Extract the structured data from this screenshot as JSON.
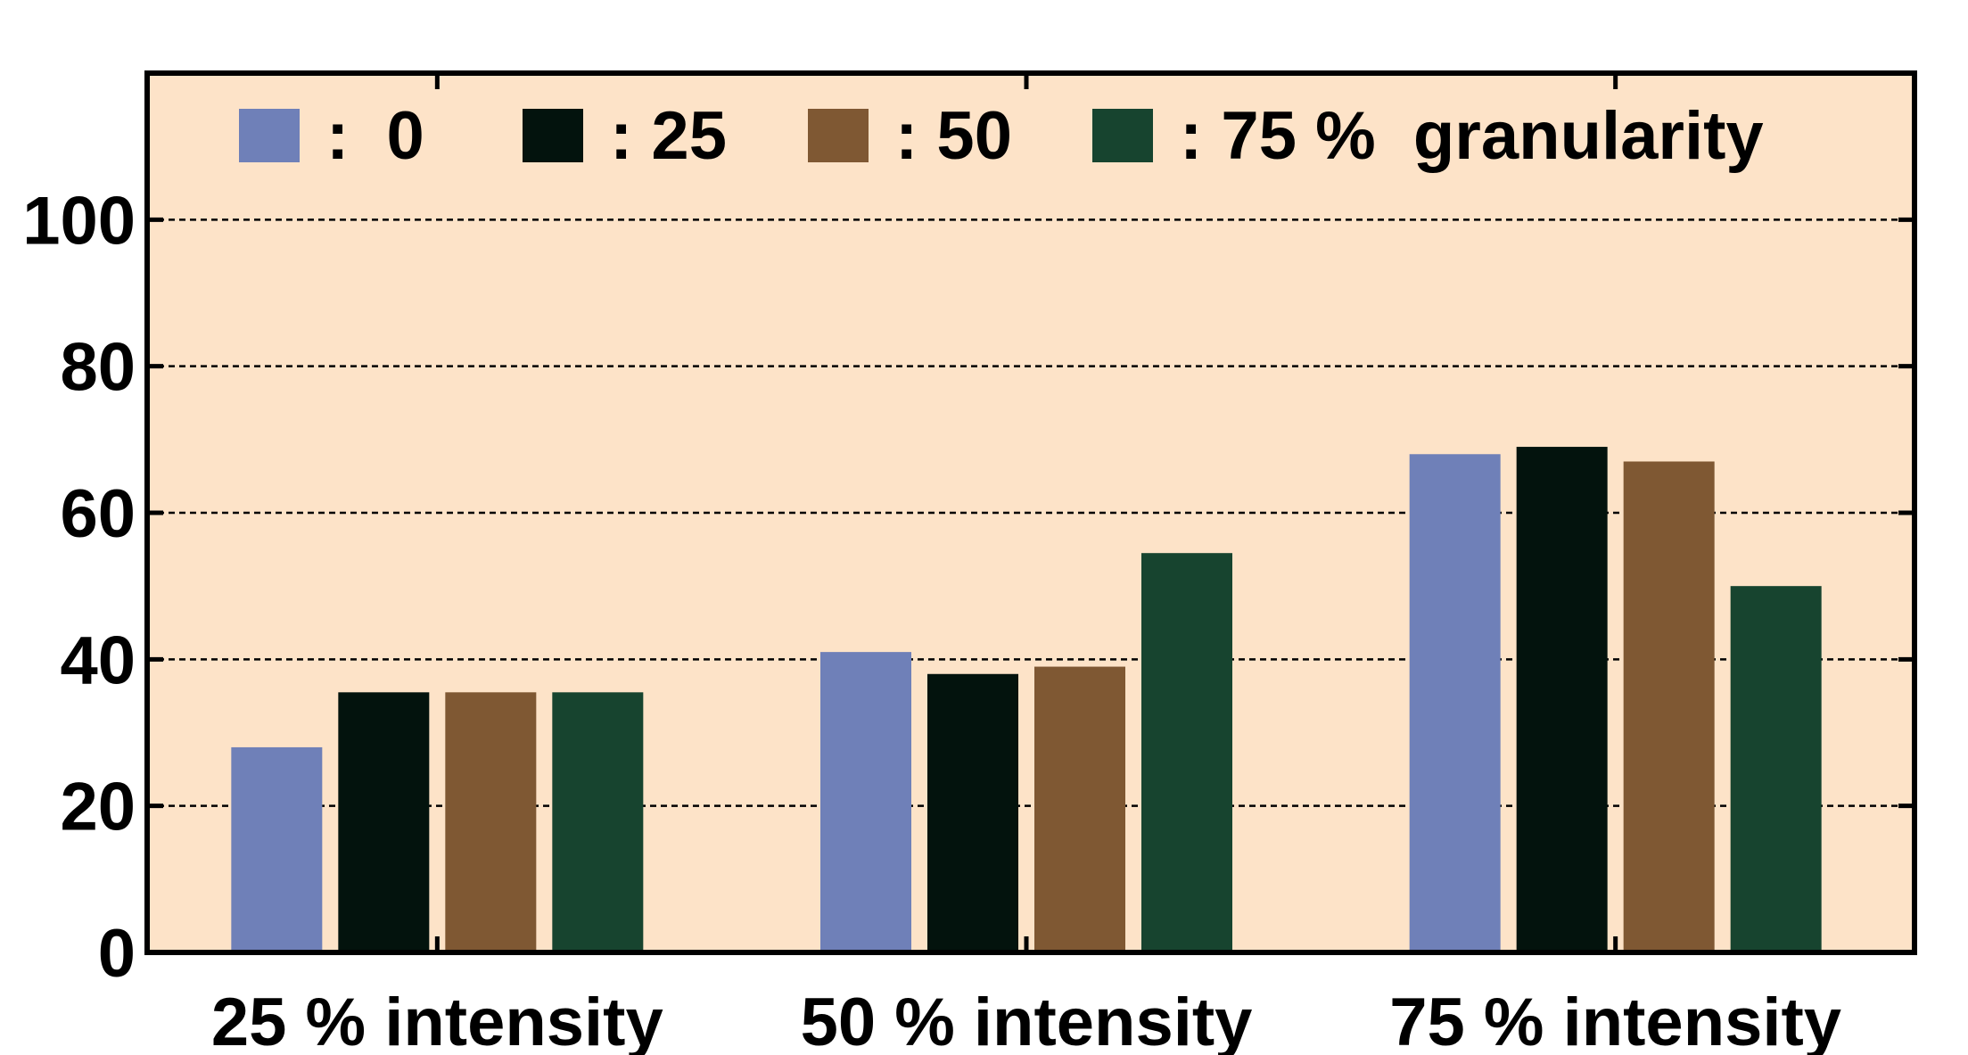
{
  "chart_data": {
    "type": "bar",
    "categories": [
      "25 % intensity",
      "50 % intensity",
      "75 % intensity"
    ],
    "series": [
      {
        "name": ":  0",
        "color": "#6f80b8",
        "values": [
          28,
          41,
          68
        ]
      },
      {
        "name": ": 25",
        "color": "#03130d",
        "values": [
          35.5,
          38,
          69
        ]
      },
      {
        "name": ": 50",
        "color": "#7f5833",
        "values": [
          35.5,
          39,
          67
        ]
      },
      {
        "name": ": 75 %  granularity",
        "color": "#17442f",
        "values": [
          35.5,
          54.5,
          50
        ]
      }
    ],
    "ylim": [
      0,
      120
    ],
    "yticks": [
      "0",
      "20",
      "40",
      "60",
      "80",
      "100"
    ],
    "grid": "dashed horizontal",
    "legend_position": "top",
    "background_color": "#fde3c8"
  }
}
